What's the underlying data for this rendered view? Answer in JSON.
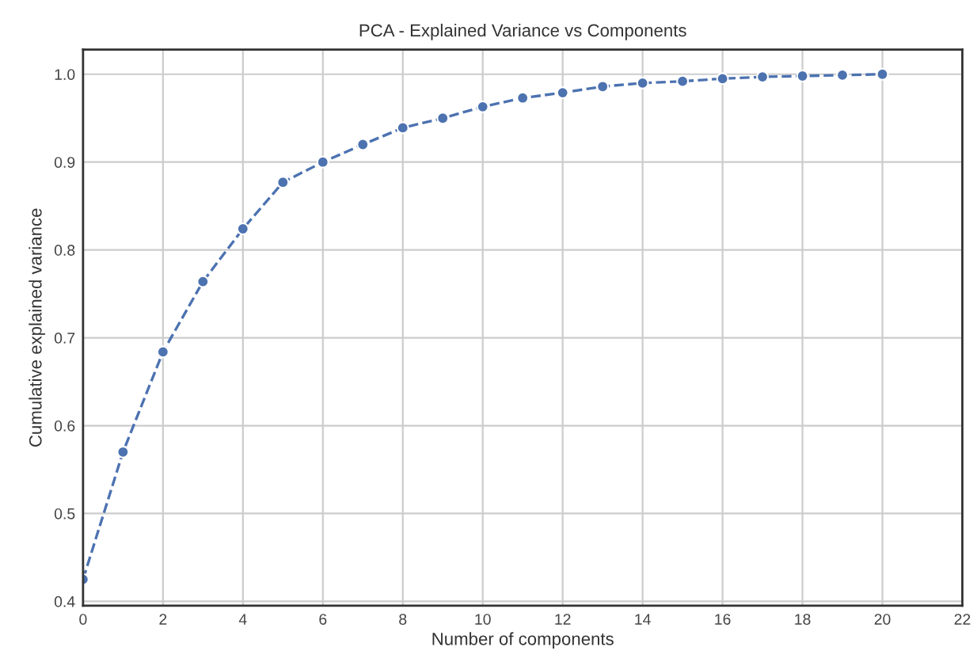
{
  "chart_data": {
    "type": "line",
    "title": "PCA - Explained Variance vs Components",
    "xlabel": "Number of components",
    "ylabel": "Cumulative explained variance",
    "x": [
      0,
      1,
      2,
      3,
      4,
      5,
      6,
      7,
      8,
      9,
      10,
      11,
      12,
      13,
      14,
      15,
      16,
      17,
      18,
      19,
      20
    ],
    "series": [
      {
        "color": "#4c72b0",
        "values": [
          0.425,
          0.57,
          0.684,
          0.764,
          0.824,
          0.877,
          0.9,
          0.92,
          0.939,
          0.95,
          0.963,
          0.973,
          0.979,
          0.986,
          0.99,
          0.992,
          0.995,
          0.997,
          0.998,
          0.999,
          1.0
        ]
      }
    ],
    "xlim": [
      0,
      22
    ],
    "xticks": [
      0,
      2,
      4,
      6,
      8,
      10,
      12,
      14,
      16,
      18,
      20,
      22
    ],
    "ylim": [
      0.395,
      1.028
    ],
    "yticks": [
      {
        "value": 0.4,
        "label": "0.4"
      },
      {
        "value": 0.5,
        "label": "0.5"
      },
      {
        "value": 0.6,
        "label": "0.6"
      },
      {
        "value": 0.7,
        "label": "0.7"
      },
      {
        "value": 0.8,
        "label": "0.8"
      },
      {
        "value": 0.9,
        "label": "0.9"
      },
      {
        "value": 1.0,
        "label": "1.0"
      }
    ],
    "grid": true,
    "marker": "circle",
    "line_style": "dashed"
  }
}
